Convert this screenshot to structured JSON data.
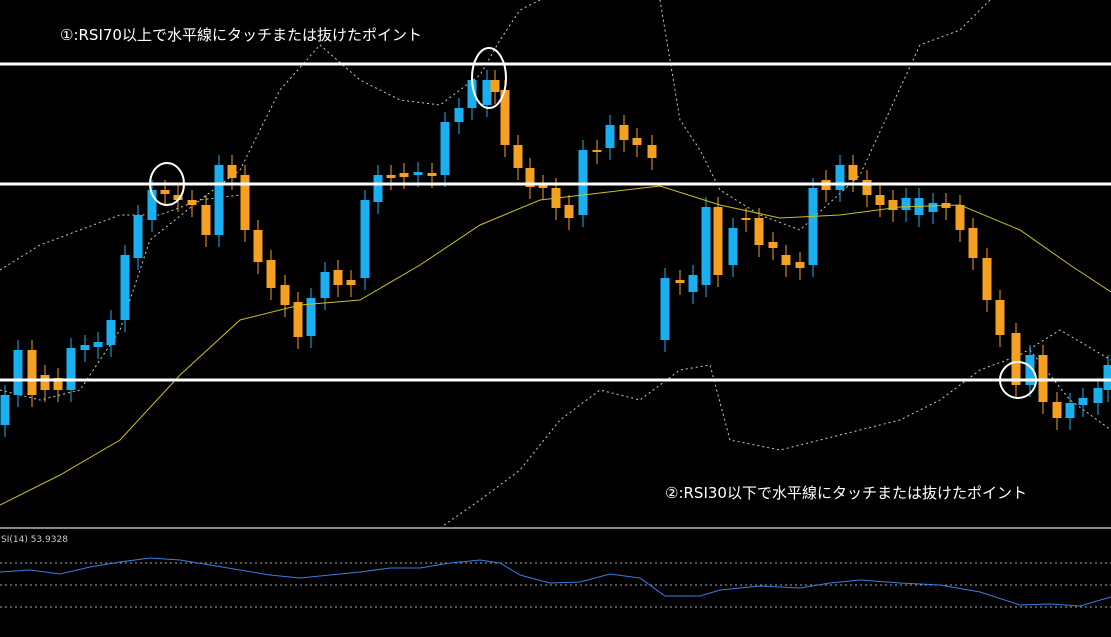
{
  "annotations": {
    "upper": "①:RSI70以上で水平線にタッチまたは抜けたポイント",
    "lower": "②:RSI30以下で水平線にタッチまたは抜けたポイント"
  },
  "indicator": {
    "label": "SI(14) 53.9328"
  }
}
